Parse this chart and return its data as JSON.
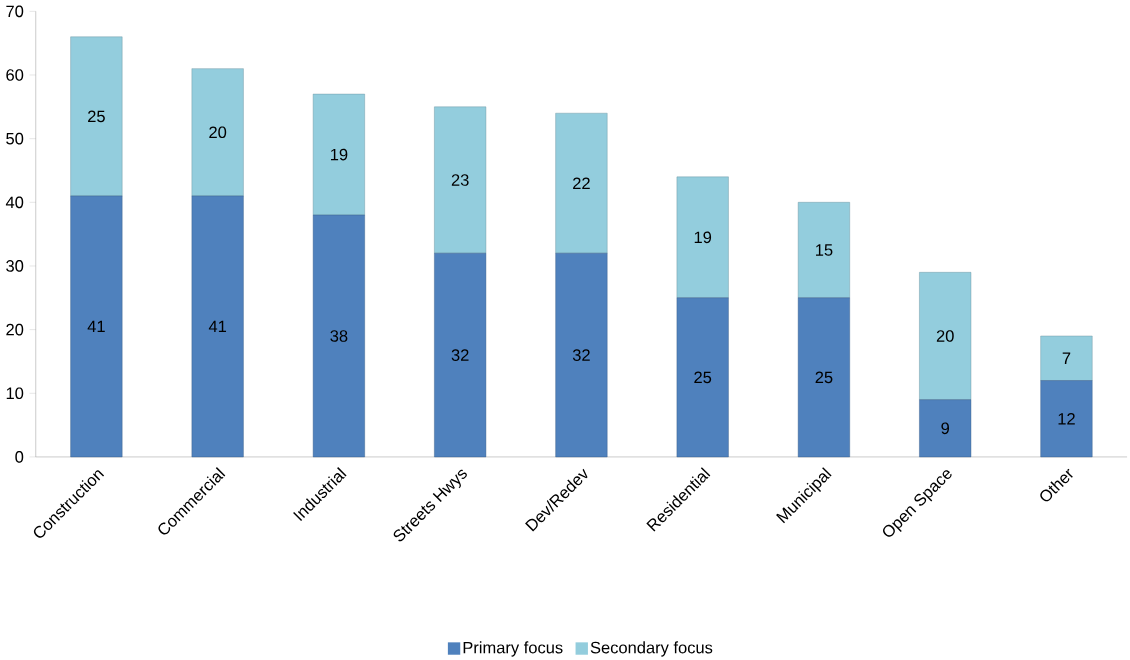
{
  "chart_data": {
    "type": "bar",
    "stacked": true,
    "data_labels": true,
    "legend": "bottom",
    "categories": [
      "Construction",
      "Commercial",
      "Industrial",
      "Streets Hwys",
      "Dev/Redev",
      "Residential",
      "Municipal",
      "Open Space",
      "Other"
    ],
    "series": [
      {
        "name": "Primary focus",
        "color": "#4f81bd",
        "values": [
          41,
          41,
          38,
          32,
          32,
          25,
          25,
          9,
          12
        ]
      },
      {
        "name": "Secondary focus",
        "color": "#93cddd",
        "values": [
          25,
          20,
          19,
          23,
          22,
          19,
          15,
          20,
          7
        ]
      }
    ],
    "ylim": [
      0,
      70
    ],
    "yticks": [
      0,
      10,
      20,
      30,
      40,
      50,
      60,
      70
    ]
  }
}
